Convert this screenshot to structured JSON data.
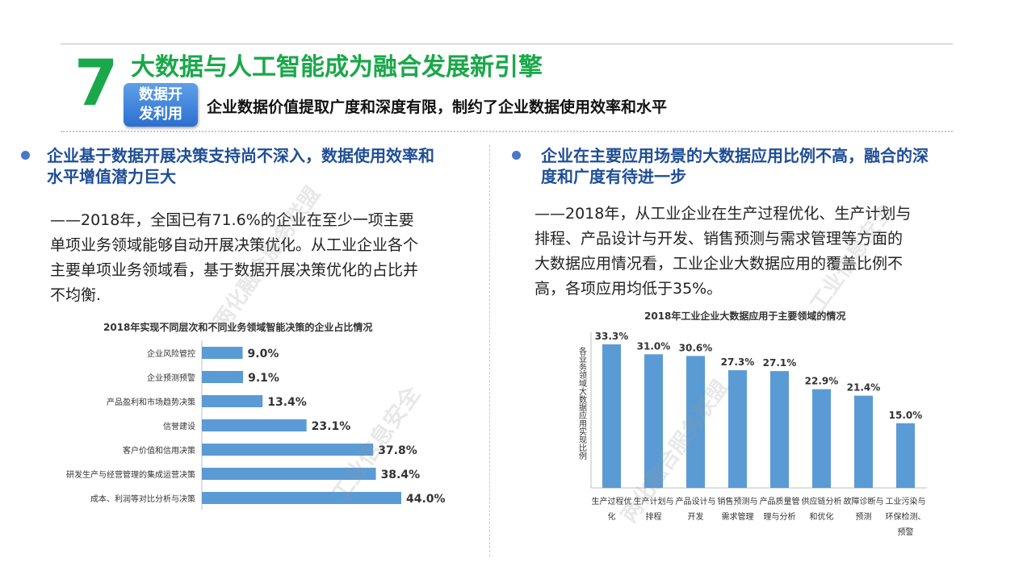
{
  "slide": {
    "number": "7",
    "title": "大数据与人工智能成为融合发展新引擎",
    "badge": [
      "数据开",
      "发利用"
    ],
    "subtitle": "企业数据价值提取广度和深度有限，制约了企业数据使用效率和水平"
  },
  "left": {
    "heading": [
      "企业基于数据开展决策支持尚不深入，数据使用效率和",
      "水平增值潜力巨大"
    ],
    "paragraph": [
      "——2018年，全国已有71.6%的企业在至少一项主要",
      "单项业务领域能够自动开展决策优化。从工业企业各个",
      "主要单项业务领域看，基于数据开展决策优化的占比并",
      "不均衡."
    ]
  },
  "right": {
    "heading": [
      "企业在主要应用场景的大数据应用比例不高，融合的深",
      "度和广度有待进一步"
    ],
    "paragraph": [
      "——2018年，从工业企业在生产过程优化、生产计划与",
      "排程、产品设计与开发、销售预测与需求管理等方面的",
      "大数据应用情况看，工业企业大数据应用的覆盖比例不",
      "高，各项应用均低于35%。"
    ]
  },
  "watermarks": [
    "两化融合服务联盟",
    "工业信息安全",
    "两化融合服务联盟",
    "工业信息安全"
  ],
  "colors": {
    "green": "#1aa84a",
    "blue_bar": "#5b9bd5",
    "heading_blue": "#1f4e96"
  },
  "chart_data": [
    {
      "type": "bar",
      "orientation": "horizontal",
      "title": "2018年实现不同层次和不同业务领域智能决策的企业占比情况",
      "categories": [
        "企业风险管控",
        "企业预测预警",
        "产品盈利和市场趋势决策",
        "信誉建设",
        "客户价值和信用决策",
        "研发生产与经营管理的集成运营决策",
        "成本、利润等对比分析与决策"
      ],
      "values": [
        9.0,
        9.1,
        13.4,
        23.1,
        37.8,
        38.4,
        44.0
      ],
      "labels": [
        "9.0%",
        "9.1%",
        "13.4%",
        "23.1%",
        "37.8%",
        "38.4%",
        "44.0%"
      ],
      "xlim": [
        0,
        44
      ]
    },
    {
      "type": "bar",
      "orientation": "vertical",
      "title": "2018年工业企业大数据应用于主要领域的情况",
      "ylabel": "各业务领域大数据应用实现比例",
      "categories": [
        [
          "生产过程优",
          "化"
        ],
        [
          "生产计划与",
          "排程"
        ],
        [
          "产品设计与",
          "开发"
        ],
        [
          "销售预测与",
          "需求管理"
        ],
        [
          "产品质量管",
          "理与分析"
        ],
        [
          "供应链分析",
          "和优化"
        ],
        [
          "故障诊断与",
          "预测"
        ],
        [
          "工业污染与",
          "环保检测、",
          "预警"
        ]
      ],
      "values": [
        33.3,
        31.0,
        30.6,
        27.3,
        27.1,
        22.9,
        21.4,
        15.0
      ],
      "labels": [
        "33.3%",
        "31.0%",
        "30.6%",
        "27.3%",
        "27.1%",
        "22.9%",
        "21.4%",
        "15.0%"
      ],
      "ylim": [
        0,
        33.3
      ]
    }
  ]
}
